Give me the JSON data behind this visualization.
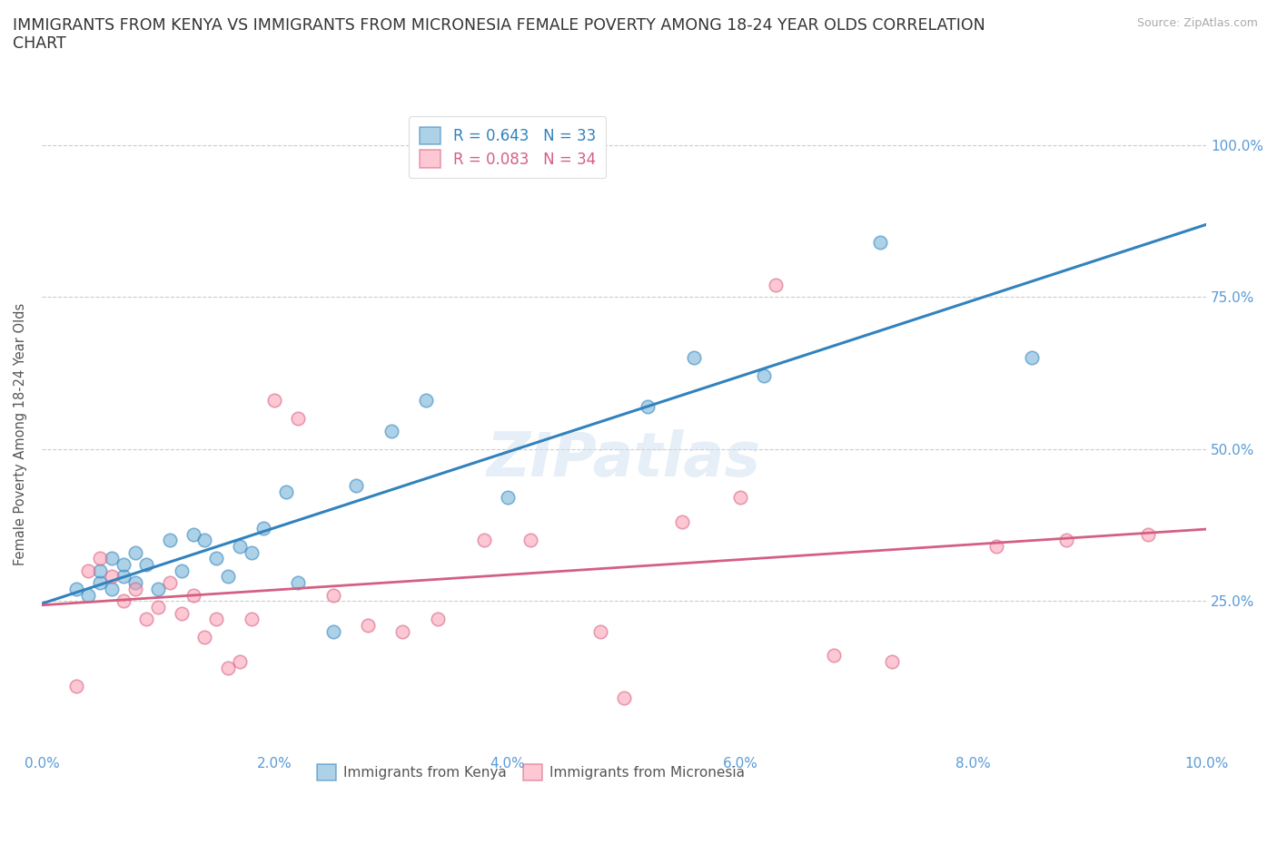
{
  "title": "IMMIGRANTS FROM KENYA VS IMMIGRANTS FROM MICRONESIA FEMALE POVERTY AMONG 18-24 YEAR OLDS CORRELATION\nCHART",
  "source_text": "Source: ZipAtlas.com",
  "ylabel": "Female Poverty Among 18-24 Year Olds",
  "xlim": [
    0.0,
    0.1
  ],
  "ylim": [
    0.0,
    1.05
  ],
  "xticks": [
    0.0,
    0.02,
    0.04,
    0.06,
    0.08,
    0.1
  ],
  "xticklabels": [
    "0.0%",
    "2.0%",
    "4.0%",
    "6.0%",
    "8.0%",
    "10.0%"
  ],
  "yticks": [
    0.25,
    0.5,
    0.75,
    1.0
  ],
  "yticklabels": [
    "25.0%",
    "50.0%",
    "75.0%",
    "100.0%"
  ],
  "kenya_color": "#6baed6",
  "kenya_edge_color": "#3182bd",
  "micronesia_color": "#fc9aaf",
  "micronesia_edge_color": "#d45f82",
  "kenya_line_color": "#3182bd",
  "micronesia_line_color": "#d45f82",
  "kenya_R": 0.643,
  "kenya_N": 33,
  "micronesia_R": 0.083,
  "micronesia_N": 34,
  "kenya_x": [
    0.003,
    0.004,
    0.005,
    0.005,
    0.006,
    0.006,
    0.007,
    0.007,
    0.008,
    0.008,
    0.009,
    0.01,
    0.011,
    0.012,
    0.013,
    0.014,
    0.015,
    0.016,
    0.017,
    0.018,
    0.019,
    0.021,
    0.022,
    0.025,
    0.027,
    0.03,
    0.033,
    0.04,
    0.052,
    0.056,
    0.062,
    0.072,
    0.085
  ],
  "kenya_y": [
    0.27,
    0.26,
    0.28,
    0.3,
    0.27,
    0.32,
    0.29,
    0.31,
    0.28,
    0.33,
    0.31,
    0.27,
    0.35,
    0.3,
    0.36,
    0.35,
    0.32,
    0.29,
    0.34,
    0.33,
    0.37,
    0.43,
    0.28,
    0.2,
    0.44,
    0.53,
    0.58,
    0.42,
    0.57,
    0.65,
    0.62,
    0.84,
    0.65
  ],
  "micronesia_x": [
    0.003,
    0.004,
    0.005,
    0.006,
    0.007,
    0.008,
    0.009,
    0.01,
    0.011,
    0.012,
    0.013,
    0.014,
    0.015,
    0.016,
    0.017,
    0.018,
    0.02,
    0.022,
    0.025,
    0.028,
    0.031,
    0.034,
    0.038,
    0.042,
    0.048,
    0.05,
    0.055,
    0.06,
    0.063,
    0.068,
    0.073,
    0.082,
    0.088,
    0.095
  ],
  "micronesia_y": [
    0.11,
    0.3,
    0.32,
    0.29,
    0.25,
    0.27,
    0.22,
    0.24,
    0.28,
    0.23,
    0.26,
    0.19,
    0.22,
    0.14,
    0.15,
    0.22,
    0.58,
    0.55,
    0.26,
    0.21,
    0.2,
    0.22,
    0.35,
    0.35,
    0.2,
    0.09,
    0.38,
    0.42,
    0.77,
    0.16,
    0.15,
    0.34,
    0.35,
    0.36
  ],
  "marker_size": 110,
  "alpha": 0.55,
  "grid_color": "#cccccc",
  "grid_linestyle": "--",
  "background_color": "#ffffff",
  "title_fontsize": 12.5,
  "tick_color": "#5b9bd5",
  "watermark": "ZIPatlas",
  "watermark_color": "#cfe0f0",
  "watermark_alpha": 0.5,
  "watermark_fontsize": 48
}
